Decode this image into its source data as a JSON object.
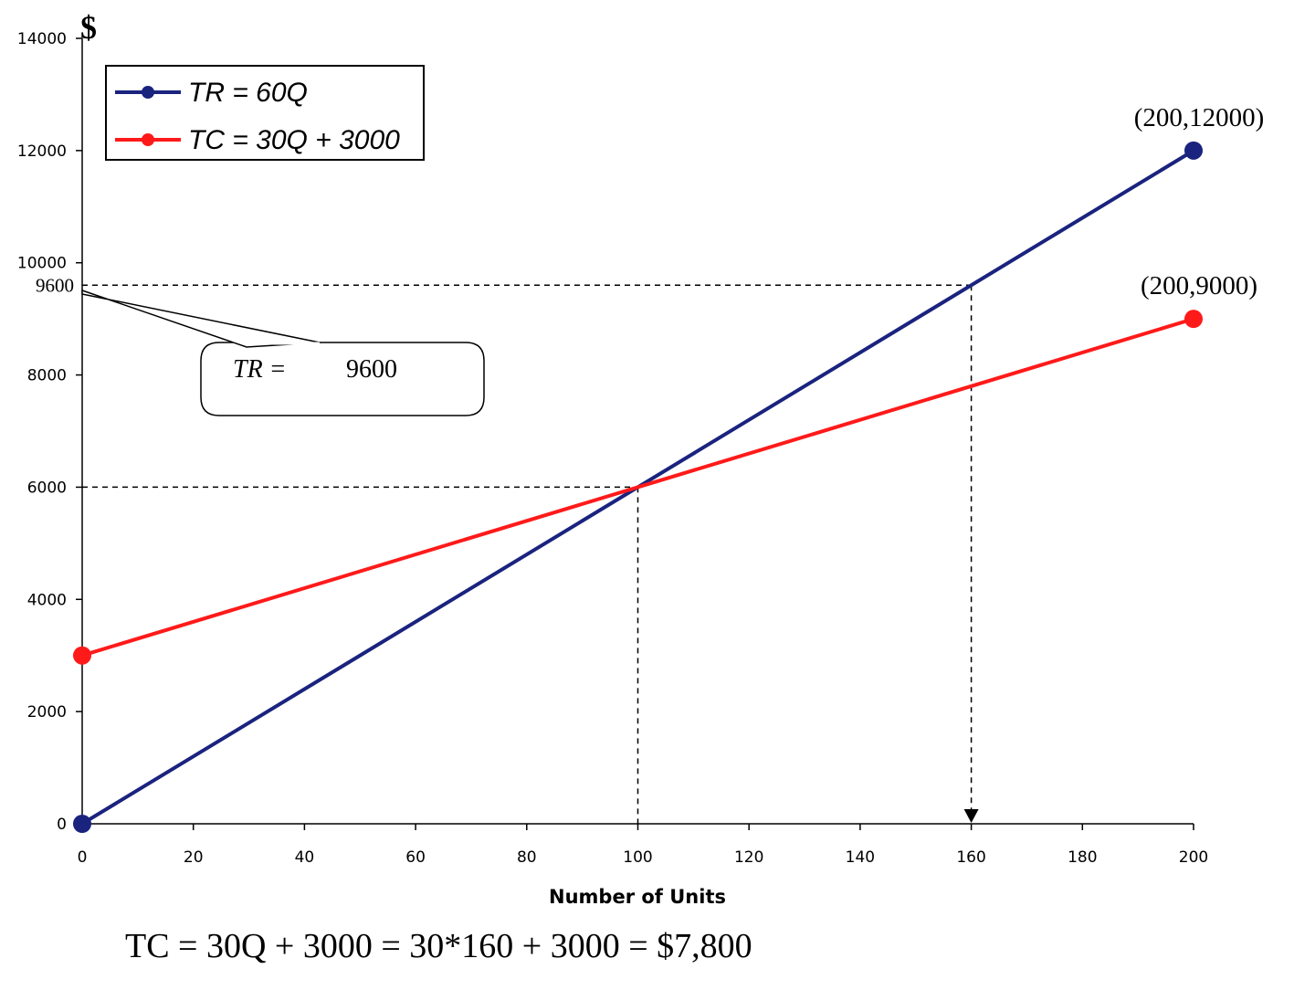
{
  "chart_data": {
    "type": "line",
    "title": "",
    "xlabel": "Number of Units",
    "ylabel": "$",
    "xlim": [
      0,
      200
    ],
    "ylim": [
      0,
      14000
    ],
    "xticks": [
      0,
      20,
      40,
      60,
      80,
      100,
      120,
      140,
      160,
      180,
      200
    ],
    "yticks": [
      0,
      2000,
      4000,
      6000,
      8000,
      10000,
      12000,
      14000
    ],
    "extra_ytick": {
      "value": 9600,
      "label": "9600"
    },
    "series": [
      {
        "name": "TR = 60Q",
        "color": "#1a237e",
        "x": [
          0,
          200
        ],
        "y": [
          0,
          12000
        ]
      },
      {
        "name": "TC = 30Q + 3000",
        "color": "#ff1a1a",
        "x": [
          0,
          200
        ],
        "y": [
          3000,
          9000
        ]
      }
    ],
    "point_labels": [
      {
        "text": "(200,12000)",
        "x": 200,
        "y": 12000
      },
      {
        "text": "(200,9000)",
        "x": 200,
        "y": 9000
      }
    ],
    "guide_lines": [
      {
        "x": 100,
        "y": 6000,
        "arrow": false
      },
      {
        "x": 160,
        "y": 9600,
        "arrow": true
      }
    ],
    "callout": {
      "text_left": "TR = ",
      "text_right": "9600",
      "anchor_x": 0,
      "anchor_y": 9600
    },
    "footer_equation": "TC = 30Q + 3000 = 30*160 + 3000 = $7,800"
  }
}
